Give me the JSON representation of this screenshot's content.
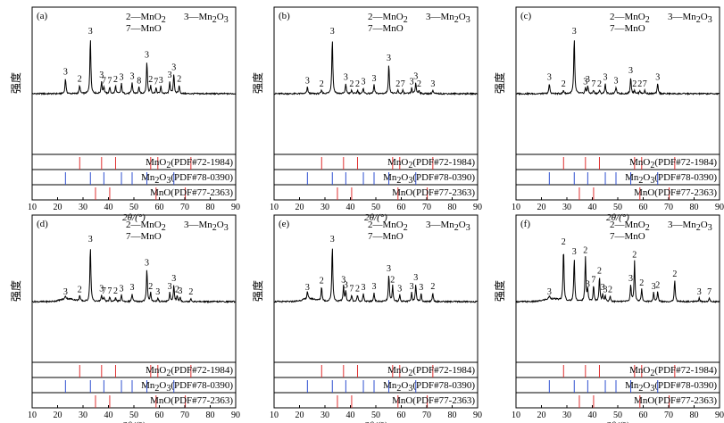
{
  "figure": {
    "xlabel": "2θ/(°)",
    "ylabel": "强度"
  },
  "legend_lines": {
    "line1_left": "2—MnO2",
    "line1_right": "3—Mn2O3",
    "line2": "7—MnO"
  },
  "references": [
    {
      "label": "MnO2(PDF#72-1984)",
      "color": "#e03030",
      "sticks": [
        28.7,
        37.3,
        42.8,
        56.6,
        59.4,
        72.4
      ]
    },
    {
      "label": "Mn2O3(PDF#78-0390)",
      "color": "#3050d0",
      "sticks": [
        23.1,
        32.9,
        38.2,
        45.1,
        49.3,
        55.1,
        65.7
      ]
    },
    {
      "label": "MnO(PDF#77-2363)",
      "color": "#e03030",
      "sticks": [
        34.9,
        40.5,
        58.7,
        70.2
      ]
    }
  ],
  "colors": {
    "frame": "#000000",
    "pattern": "#000000"
  },
  "chart_data": [
    {
      "type": "line",
      "panel": "(a)",
      "xlim": [
        10,
        90
      ],
      "xticks": [
        10,
        20,
        30,
        40,
        50,
        60,
        70,
        80,
        90
      ],
      "ylabel": "强度",
      "xlabel": "2θ/(°)",
      "peaks": [
        {
          "x": 23.1,
          "h": 0.28,
          "label": "3"
        },
        {
          "x": 28.7,
          "h": 0.15,
          "label": "2"
        },
        {
          "x": 32.9,
          "h": 1.0,
          "label": "3"
        },
        {
          "x": 37.3,
          "h": 0.22,
          "label": "3"
        },
        {
          "x": 38.2,
          "h": 0.12,
          "label": "7"
        },
        {
          "x": 40.5,
          "h": 0.12,
          "label": "7"
        },
        {
          "x": 42.8,
          "h": 0.14,
          "label": "2"
        },
        {
          "x": 45.1,
          "h": 0.18,
          "label": "3"
        },
        {
          "x": 49.3,
          "h": 0.2,
          "label": "3"
        },
        {
          "x": 52.0,
          "h": 0.12,
          "label": "8"
        },
        {
          "x": 55.1,
          "h": 0.58,
          "label": "3"
        },
        {
          "x": 56.6,
          "h": 0.14,
          "label": "2"
        },
        {
          "x": 58.7,
          "h": 0.1,
          "label": "7"
        },
        {
          "x": 60.6,
          "h": 0.13,
          "label": "3"
        },
        {
          "x": 64.1,
          "h": 0.22,
          "label": "3"
        },
        {
          "x": 65.7,
          "h": 0.36,
          "label": "3"
        },
        {
          "x": 67.8,
          "h": 0.15,
          "label": "2"
        }
      ]
    },
    {
      "type": "line",
      "panel": "(b)",
      "xlim": [
        10,
        90
      ],
      "xticks": [
        10,
        20,
        30,
        40,
        50,
        60,
        70,
        80,
        90
      ],
      "ylabel": "强度",
      "xlabel": "2θ/(°)",
      "peaks": [
        {
          "x": 23.1,
          "h": 0.12,
          "label": "3"
        },
        {
          "x": 28.7,
          "h": 0.06,
          "label": "2"
        },
        {
          "x": 32.9,
          "h": 1.0,
          "label": "3"
        },
        {
          "x": 38.2,
          "h": 0.18,
          "label": "3"
        },
        {
          "x": 40.5,
          "h": 0.06,
          "label": "2"
        },
        {
          "x": 42.8,
          "h": 0.06,
          "label": "2"
        },
        {
          "x": 45.1,
          "h": 0.1,
          "label": "3"
        },
        {
          "x": 49.3,
          "h": 0.16,
          "label": "3"
        },
        {
          "x": 55.1,
          "h": 0.52,
          "label": "3"
        },
        {
          "x": 58.7,
          "h": 0.06,
          "label": "2"
        },
        {
          "x": 60.6,
          "h": 0.06,
          "label": "7"
        },
        {
          "x": 64.1,
          "h": 0.1,
          "label": "3"
        },
        {
          "x": 65.7,
          "h": 0.2,
          "label": "3"
        },
        {
          "x": 67.0,
          "h": 0.06,
          "label": "2"
        },
        {
          "x": 72.4,
          "h": 0.06,
          "label": "3"
        }
      ]
    },
    {
      "type": "line",
      "panel": "(c)",
      "xlim": [
        10,
        90
      ],
      "xticks": [
        10,
        20,
        30,
        40,
        50,
        60,
        70,
        80,
        90
      ],
      "ylabel": "强度",
      "xlabel": "2θ/(°)",
      "peaks": [
        {
          "x": 23.1,
          "h": 0.18,
          "label": "3"
        },
        {
          "x": 28.7,
          "h": 0.06,
          "label": "2"
        },
        {
          "x": 32.9,
          "h": 1.0,
          "label": "3"
        },
        {
          "x": 37.3,
          "h": 0.1,
          "label": "3"
        },
        {
          "x": 38.2,
          "h": 0.14,
          "label": "3"
        },
        {
          "x": 40.5,
          "h": 0.06,
          "label": "7"
        },
        {
          "x": 42.8,
          "h": 0.06,
          "label": "2"
        },
        {
          "x": 45.1,
          "h": 0.18,
          "label": "3"
        },
        {
          "x": 49.3,
          "h": 0.12,
          "label": "3"
        },
        {
          "x": 55.1,
          "h": 0.3,
          "label": "3"
        },
        {
          "x": 56.6,
          "h": 0.06,
          "label": "2"
        },
        {
          "x": 58.7,
          "h": 0.06,
          "label": "2"
        },
        {
          "x": 60.6,
          "h": 0.06,
          "label": "7"
        },
        {
          "x": 65.7,
          "h": 0.18,
          "label": "3"
        }
      ]
    },
    {
      "type": "line",
      "panel": "(d)",
      "xlim": [
        10,
        90
      ],
      "xticks": [
        10,
        20,
        30,
        40,
        50,
        60,
        70,
        80,
        90
      ],
      "ylabel": "强度",
      "xlabel": "2θ/(°)",
      "peaks": [
        {
          "x": 23.1,
          "h": 0.06,
          "label": "3"
        },
        {
          "x": 28.7,
          "h": 0.1,
          "label": "2"
        },
        {
          "x": 32.9,
          "h": 1.0,
          "label": "3"
        },
        {
          "x": 37.3,
          "h": 0.12,
          "label": "3"
        },
        {
          "x": 38.2,
          "h": 0.08,
          "label": "7"
        },
        {
          "x": 40.5,
          "h": 0.08,
          "label": "7"
        },
        {
          "x": 42.8,
          "h": 0.08,
          "label": "2"
        },
        {
          "x": 45.1,
          "h": 0.12,
          "label": "3"
        },
        {
          "x": 49.3,
          "h": 0.14,
          "label": "3"
        },
        {
          "x": 55.1,
          "h": 0.58,
          "label": "3"
        },
        {
          "x": 56.6,
          "h": 0.16,
          "label": "2"
        },
        {
          "x": 59.4,
          "h": 0.06,
          "label": "3"
        },
        {
          "x": 64.1,
          "h": 0.16,
          "label": "3"
        },
        {
          "x": 65.7,
          "h": 0.3,
          "label": "3"
        },
        {
          "x": 67.0,
          "h": 0.1,
          "label": "2"
        },
        {
          "x": 68.2,
          "h": 0.08,
          "label": "3"
        },
        {
          "x": 72.4,
          "h": 0.06,
          "label": "2"
        }
      ]
    },
    {
      "type": "line",
      "panel": "(e)",
      "xlim": [
        10,
        90
      ],
      "xticks": [
        10,
        20,
        30,
        40,
        50,
        60,
        70,
        80,
        90
      ],
      "ylabel": "强度",
      "xlabel": "2θ/(°)",
      "peaks": [
        {
          "x": 23.1,
          "h": 0.14,
          "label": "3"
        },
        {
          "x": 28.7,
          "h": 0.26,
          "label": "2"
        },
        {
          "x": 32.9,
          "h": 1.0,
          "label": "3"
        },
        {
          "x": 37.3,
          "h": 0.28,
          "label": "3"
        },
        {
          "x": 38.2,
          "h": 0.18,
          "label": "3"
        },
        {
          "x": 40.5,
          "h": 0.12,
          "label": "7"
        },
        {
          "x": 42.8,
          "h": 0.12,
          "label": "2"
        },
        {
          "x": 45.1,
          "h": 0.14,
          "label": "3"
        },
        {
          "x": 49.3,
          "h": 0.16,
          "label": "3"
        },
        {
          "x": 55.1,
          "h": 0.48,
          "label": "3"
        },
        {
          "x": 56.6,
          "h": 0.28,
          "label": "2"
        },
        {
          "x": 59.4,
          "h": 0.12,
          "label": "3"
        },
        {
          "x": 64.1,
          "h": 0.16,
          "label": "3"
        },
        {
          "x": 65.7,
          "h": 0.32,
          "label": "3"
        },
        {
          "x": 67.8,
          "h": 0.14,
          "label": "3"
        },
        {
          "x": 72.4,
          "h": 0.16,
          "label": "2"
        }
      ]
    },
    {
      "type": "line",
      "panel": "(f)",
      "xlim": [
        10,
        90
      ],
      "xticks": [
        10,
        20,
        30,
        40,
        50,
        60,
        70,
        80,
        90
      ],
      "ylabel": "强度",
      "xlabel": "2θ/(°)",
      "peaks": [
        {
          "x": 23.1,
          "h": 0.06,
          "label": "3"
        },
        {
          "x": 28.7,
          "h": 0.95,
          "label": "2"
        },
        {
          "x": 32.9,
          "h": 0.78,
          "label": "3"
        },
        {
          "x": 37.3,
          "h": 0.8,
          "label": "2"
        },
        {
          "x": 38.2,
          "h": 0.2,
          "label": "3"
        },
        {
          "x": 40.5,
          "h": 0.28,
          "label": "7"
        },
        {
          "x": 42.8,
          "h": 0.44,
          "label": "2"
        },
        {
          "x": 44.1,
          "h": 0.14,
          "label": "3"
        },
        {
          "x": 45.1,
          "h": 0.1,
          "label": "3"
        },
        {
          "x": 47.0,
          "h": 0.1,
          "label": "2"
        },
        {
          "x": 55.1,
          "h": 0.3,
          "label": "3"
        },
        {
          "x": 56.6,
          "h": 0.72,
          "label": "2"
        },
        {
          "x": 59.4,
          "h": 0.22,
          "label": "2"
        },
        {
          "x": 64.1,
          "h": 0.16,
          "label": "3"
        },
        {
          "x": 65.7,
          "h": 0.18,
          "label": "2"
        },
        {
          "x": 72.4,
          "h": 0.38,
          "label": "2"
        },
        {
          "x": 82.0,
          "h": 0.06,
          "label": "3"
        },
        {
          "x": 86.0,
          "h": 0.06,
          "label": "7"
        }
      ]
    }
  ]
}
